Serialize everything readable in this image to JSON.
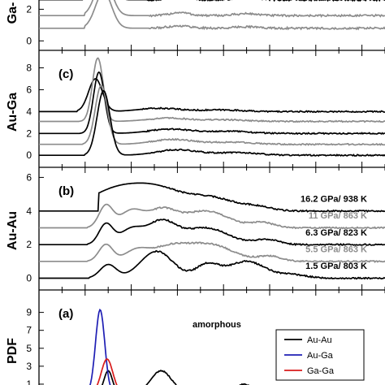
{
  "colors": {
    "black": "#000000",
    "gray": "#8c8c8c",
    "blue": "#1f1fb4",
    "red": "#d81c1c"
  },
  "chart_data": [
    {
      "id": "ga-ga",
      "type": "line",
      "panel_label": "",
      "ylabel": "Ga-",
      "ylim": [
        -0.6,
        3.1
      ],
      "yticks": [
        "0",
        "2"
      ],
      "ytick_values": [
        0,
        2
      ],
      "xlim": [
        0,
        15
      ],
      "series": [
        {
          "color": "black",
          "offset": 2.6,
          "peaks": [
            [
              2.7,
              0.35,
              2.6
            ],
            [
              6.1,
              0.4,
              0.25
            ],
            [
              9.0,
              0.5,
              0.15
            ]
          ]
        },
        {
          "color": "gray",
          "offset": 1.6,
          "peaks": [
            [
              2.8,
              0.35,
              2.4
            ],
            [
              6.1,
              0.4,
              0.2
            ],
            [
              9.0,
              0.5,
              0.12
            ]
          ]
        },
        {
          "color": "gray",
          "offset": 0.8,
          "peaks": [
            [
              2.8,
              0.35,
              2.3
            ],
            [
              6.1,
              0.5,
              0.15
            ],
            [
              9.0,
              0.5,
              0.1
            ]
          ]
        }
      ]
    },
    {
      "id": "au-ga",
      "type": "line",
      "panel_label": "(c)",
      "ylabel": "Au-Ga",
      "ylim": [
        -1.1,
        9.6
      ],
      "yticks": [
        "0",
        "2",
        "4",
        "6",
        "8"
      ],
      "ytick_values": [
        0,
        2,
        4,
        6,
        8
      ],
      "xlim": [
        0,
        15
      ],
      "series": [
        {
          "color": "black",
          "offset": 4.0,
          "peaks": [
            [
              2.45,
              0.3,
              3.0
            ],
            [
              5.2,
              0.9,
              0.3
            ],
            [
              7.9,
              0.9,
              0.15
            ]
          ]
        },
        {
          "color": "gray",
          "offset": 3.1,
          "peaks": [
            [
              2.55,
              0.23,
              5.8
            ],
            [
              5.6,
              0.9,
              0.3
            ],
            [
              8.1,
              0.9,
              0.15
            ]
          ]
        },
        {
          "color": "black",
          "offset": 2.0,
          "peaks": [
            [
              2.6,
              0.24,
              5.6
            ],
            [
              5.7,
              0.9,
              0.4
            ],
            [
              8.2,
              0.9,
              0.2
            ]
          ]
        },
        {
          "color": "gray",
          "offset": 1.0,
          "peaks": [
            [
              2.7,
              0.26,
              5.4
            ],
            [
              5.8,
              0.9,
              0.45
            ],
            [
              8.4,
              0.9,
              0.2
            ]
          ]
        },
        {
          "color": "black",
          "offset": 0.0,
          "peaks": [
            [
              2.8,
              0.28,
              5.9
            ],
            [
              6.0,
              0.9,
              0.5
            ],
            [
              8.6,
              0.9,
              0.25
            ]
          ]
        }
      ]
    },
    {
      "id": "au-au",
      "type": "line",
      "panel_label": "(b)",
      "ylabel": "Au-Au",
      "ylim": [
        -0.7,
        6.6
      ],
      "yticks": [
        "0",
        "2",
        "4",
        "6"
      ],
      "ytick_values": [
        0,
        2,
        4,
        6
      ],
      "xlim": [
        0,
        15
      ],
      "series": [
        {
          "label": "16.2 GPa/ 938 K",
          "color": "black",
          "offset": 4.0,
          "peaks": [
            [
              3.4,
              1.2,
              1.3
            ],
            [
              5.2,
              1.0,
              1.0
            ],
            [
              7.4,
              1.1,
              0.8
            ],
            [
              9.5,
              0.6,
              0.2
            ]
          ]
        },
        {
          "label": "11 GPa/ 863 K",
          "color": "gray",
          "offset": 3.0,
          "peaks": [
            [
              2.9,
              0.3,
              1.3
            ],
            [
              4.0,
              0.5,
              1.0
            ],
            [
              5.3,
              0.6,
              1.0
            ],
            [
              7.2,
              1.0,
              1.0
            ],
            [
              9.7,
              0.5,
              0.3
            ]
          ]
        },
        {
          "label": "6.3 GPa/ 823 K",
          "color": "black",
          "offset": 2.0,
          "peaks": [
            [
              2.9,
              0.3,
              1.2
            ],
            [
              4.0,
              0.5,
              0.9
            ],
            [
              5.3,
              0.6,
              1.3
            ],
            [
              7.2,
              1.0,
              1.0
            ],
            [
              9.9,
              0.5,
              0.3
            ]
          ]
        },
        {
          "label": "5.5 GPa/ 863 K",
          "color": "gray",
          "offset": 1.0,
          "peaks": [
            [
              2.9,
              0.3,
              1.0
            ],
            [
              4.2,
              0.5,
              0.6
            ],
            [
              5.6,
              0.8,
              0.8
            ],
            [
              7.4,
              1.0,
              1.0
            ],
            [
              10.0,
              0.5,
              0.3
            ]
          ]
        },
        {
          "label": "1.5 GPa/ 803 K",
          "color": "black",
          "offset": 0.0,
          "peaks": [
            [
              3.0,
              0.35,
              0.8
            ],
            [
              5.1,
              0.7,
              1.6
            ],
            [
              7.3,
              0.5,
              0.8
            ],
            [
              9.0,
              0.8,
              1.0
            ],
            [
              11.0,
              0.6,
              0.2
            ]
          ]
        }
      ]
    },
    {
      "id": "pdf",
      "type": "line",
      "panel_label": "(a)",
      "ylabel": "PDF",
      "annotation": "amorphous",
      "ylim": [
        0,
        11.5
      ],
      "yticks": [
        "1",
        "3",
        "5",
        "7",
        "9"
      ],
      "ytick_values": [
        1,
        3,
        5,
        7,
        9
      ],
      "xlim": [
        0,
        15
      ],
      "series": [
        {
          "name": "Au-Au",
          "color": "black",
          "offset": 0,
          "peaks": [
            [
              3.0,
              0.18,
              2.5
            ],
            [
              5.3,
              0.45,
              2.5
            ],
            [
              8.9,
              0.35,
              1.0
            ]
          ]
        },
        {
          "name": "Au-Ga",
          "color": "blue",
          "offset": 0,
          "peaks": [
            [
              2.65,
              0.2,
              9.3
            ]
          ]
        },
        {
          "name": "Ga-Ga",
          "color": "red",
          "offset": 0,
          "peaks": [
            [
              2.95,
              0.25,
              3.8
            ],
            [
              6.0,
              0.4,
              0.6
            ]
          ]
        }
      ]
    }
  ]
}
